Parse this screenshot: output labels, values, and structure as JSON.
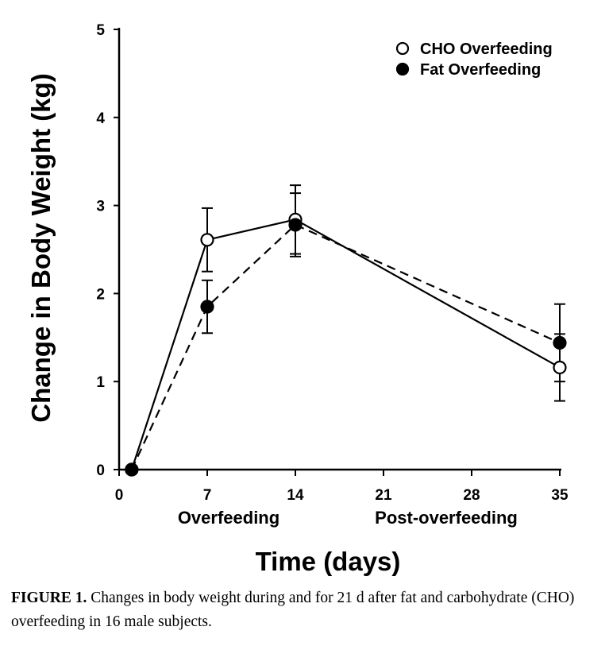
{
  "chart_data": {
    "type": "line",
    "xlabel": "Time (days)",
    "ylabel": "Change in Body Weight (kg)",
    "xlim": [
      0,
      35
    ],
    "ylim": [
      0,
      5
    ],
    "xticks": [
      0,
      7,
      14,
      21,
      28,
      35
    ],
    "yticks": [
      0,
      1,
      2,
      3,
      4,
      5
    ],
    "phase_labels": [
      "Overfeeding",
      "Post-overfeeding"
    ],
    "legend_position": "top-right",
    "grid": false,
    "series": [
      {
        "name": "CHO Overfeeding",
        "marker": "open-circle",
        "line_style": "solid",
        "x": [
          1,
          7,
          14,
          35
        ],
        "y": [
          0,
          2.61,
          2.84,
          1.16
        ],
        "error": [
          0,
          0.36,
          0.39,
          0.38
        ]
      },
      {
        "name": "Fat Overfeeding",
        "marker": "filled-circle",
        "line_style": "dashed",
        "x": [
          1,
          7,
          14,
          35
        ],
        "y": [
          0,
          1.85,
          2.78,
          1.44
        ],
        "error": [
          0,
          0.3,
          0.36,
          0.44
        ]
      }
    ]
  },
  "caption": {
    "label": "FIGURE 1.",
    "text": " Changes in body weight during and for 21 d after fat and carbohydrate (CHO) overfeeding in 16 male subjects."
  }
}
